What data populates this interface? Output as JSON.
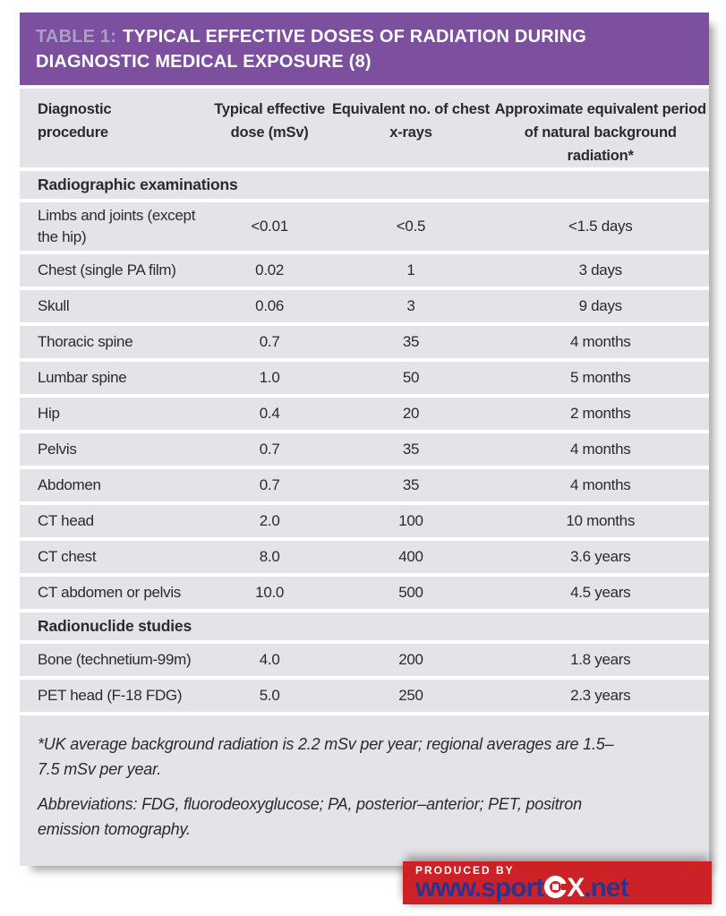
{
  "table": {
    "title": {
      "prefix": "TABLE 1:",
      "rest": "TYPICAL EFFECTIVE DOSES OF RADIATION DURING DIAGNOSTIC MEDICAL EXPOSURE (8)"
    },
    "columns": [
      "Diagnostic procedure",
      "Typical effective dose (mSv)",
      "Equivalent no. of chest x-rays",
      "Approximate equivalent period of natural background radiation*"
    ],
    "sections": [
      {
        "label": "Radiographic examinations",
        "rows": [
          [
            "Limbs and joints (except the hip)",
            "<0.01",
            "<0.5",
            "<1.5 days"
          ],
          [
            "Chest (single PA film)",
            "0.02",
            "1",
            "3 days"
          ],
          [
            "Skull",
            "0.06",
            "3",
            "9 days"
          ],
          [
            "Thoracic spine",
            "0.7",
            "35",
            "4 months"
          ],
          [
            "Lumbar spine",
            "1.0",
            "50",
            "5 months"
          ],
          [
            "Hip",
            "0.4",
            "20",
            "2 months"
          ],
          [
            "Pelvis",
            "0.7",
            "35",
            "4 months"
          ],
          [
            "Abdomen",
            "0.7",
            "35",
            "4 months"
          ],
          [
            "CT head",
            "2.0",
            "100",
            "10 months"
          ],
          [
            "CT chest",
            "8.0",
            "400",
            "3.6 years"
          ],
          [
            "CT abdomen or pelvis",
            "10.0",
            "500",
            "4.5 years"
          ]
        ]
      },
      {
        "label": "Radionuclide studies",
        "rows": [
          [
            "Bone (technetium-99m)",
            "4.0",
            "200",
            "1.8 years"
          ],
          [
            "PET head (F-18 FDG)",
            "5.0",
            "250",
            "2.3 years"
          ]
        ]
      }
    ],
    "footnotes": [
      "*UK average background radiation is 2.2 mSv per year; regional averages are 1.5–7.5 mSv per year.",
      "Abbreviations: FDG, fluorodeoxyglucose; PA, posterior–anterior; PET, positron emission tomography."
    ]
  },
  "footer": {
    "produced_by": "PRODUCED BY",
    "logo_pre": "www.sport",
    "logo_x": "X",
    "logo_post": ".net"
  },
  "colors": {
    "header_purple": "#7c4f9f",
    "title_prefix_lavender": "#aaa0c2",
    "row_gray": "#e4e3e7",
    "text_dark": "#2b2b2e",
    "logo_red": "#cb2127",
    "logo_navy": "#2b3490"
  }
}
